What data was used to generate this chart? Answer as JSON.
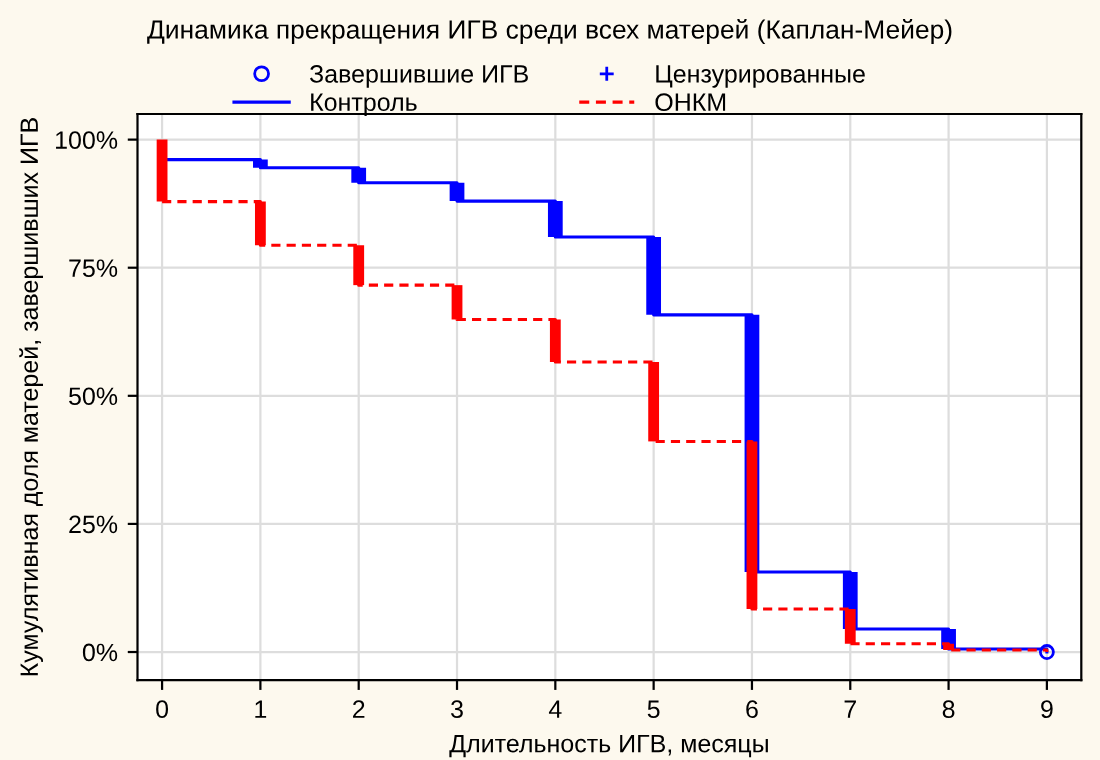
{
  "chart_data": {
    "type": "step",
    "title": "Динамика прекращения ИГВ среди всех матерей (Каплан-Мейер)",
    "xlabel": "Длительность ИГВ, месяцы",
    "ylabel": "Кумулятивная доля матерей, завершивших ИГВ",
    "series": [
      {
        "name": "Завершившие ИГВ",
        "type": "scatter",
        "marker": "circle",
        "color": "#0000ff",
        "x": [
          9
        ],
        "values": [
          0
        ]
      },
      {
        "name": "Цензурированные",
        "type": "scatter",
        "marker": "cross",
        "color": "#0000ff"
      },
      {
        "name": "Контроль",
        "line_style": "solid",
        "color": "#0000ff",
        "x": [
          0,
          1,
          2,
          3,
          4,
          5,
          6,
          7,
          8,
          9
        ],
        "values": [
          96.1,
          94.5,
          91.6,
          88.0,
          81.0,
          65.8,
          15.6,
          4.5,
          0.6,
          0
        ]
      },
      {
        "type": "bar",
        "color": "#0000ff",
        "x": [
          1,
          2,
          3,
          4,
          5,
          6,
          7,
          8
        ],
        "base": [
          94.5,
          91.6,
          88.0,
          81.0,
          65.8,
          15.6,
          4.5,
          0.6
        ],
        "values": [
          1.6,
          2.9,
          3.6,
          7.0,
          15.2,
          50.2,
          11.1,
          3.9
        ]
      },
      {
        "name": "ОНКМ",
        "line_style": "dashed",
        "color": "#ff0000",
        "x": [
          0,
          1,
          2,
          3,
          4,
          5,
          6,
          7,
          8,
          9
        ],
        "values": [
          87.9,
          79.4,
          71.6,
          64.9,
          56.6,
          41.1,
          8.4,
          1.6,
          0.4,
          0
        ]
      },
      {
        "type": "bar",
        "color": "#ff0000",
        "x": [
          0,
          1,
          2,
          3,
          4,
          5,
          6,
          7,
          8
        ],
        "base": [
          87.9,
          79.4,
          71.6,
          64.9,
          56.6,
          41.1,
          8.4,
          1.6,
          0.4
        ],
        "values": [
          12.1,
          8.5,
          7.8,
          6.7,
          8.3,
          15.5,
          32.7,
          6.8,
          1.2
        ]
      }
    ],
    "xlim": [
      -0.25,
      9.35
    ],
    "xticks": [
      0,
      1,
      2,
      3,
      4,
      5,
      6,
      7,
      8,
      9
    ],
    "ylim": [
      -5.5,
      105
    ],
    "yticks": [
      {
        "value": 0,
        "label": "0%"
      },
      {
        "value": 25,
        "label": "25%"
      },
      {
        "value": 50,
        "label": "50%"
      },
      {
        "value": 75,
        "label": "75%"
      },
      {
        "value": 100,
        "label": "100%"
      }
    ],
    "grid": true,
    "legend": "top"
  }
}
